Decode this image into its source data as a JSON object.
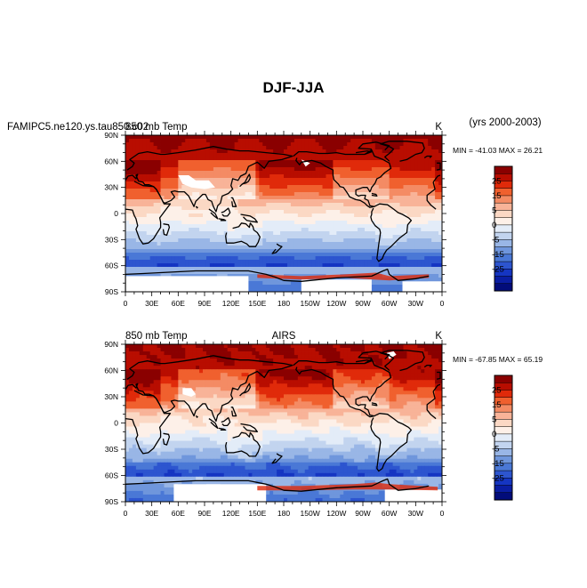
{
  "figure": {
    "title": "DJF-JJA",
    "period": "(yrs 2000-2003)"
  },
  "chart_data": [
    {
      "type": "heatmap",
      "name": "model",
      "left_label": "FAMIPC5.ne120.ys.tau850.c02",
      "variable_label": "850 mb Temp",
      "center_label": "",
      "units": "K",
      "stats": "MIN = -41.03 MAX =  26.21",
      "x_ticks": [
        "0",
        "30E",
        "60E",
        "90E",
        "120E",
        "150E",
        "180",
        "150W",
        "120W",
        "90W",
        "60W",
        "30W",
        "0"
      ],
      "y_ticks": [
        "90N",
        "60N",
        "30N",
        "0",
        "30S",
        "60S",
        "90S"
      ],
      "colorbar_labels": [
        "25",
        "15",
        "5",
        "0",
        "-5",
        "-15",
        "-25"
      ],
      "color_levels": [
        "#8a0000",
        "#b80d00",
        "#e02a0a",
        "#f0602e",
        "#f48b64",
        "#f8b398",
        "#fbd8c4",
        "#fdf0e8",
        "#e3ecf8",
        "#c2d4ef",
        "#99b6e6",
        "#6f96dc",
        "#4a78d6",
        "#2d55cf",
        "#1535c2",
        "#0a1da2",
        "#020c7a"
      ],
      "min": -41.03,
      "max": 26.21
    },
    {
      "type": "heatmap",
      "name": "obs",
      "left_label": "",
      "variable_label": "850 mb Temp",
      "center_label": "AIRS",
      "units": "K",
      "stats": "MIN = -67.85 MAX =  65.19",
      "x_ticks": [
        "0",
        "30E",
        "60E",
        "90E",
        "120E",
        "150E",
        "180",
        "150W",
        "120W",
        "90W",
        "60W",
        "30W",
        "0"
      ],
      "y_ticks": [
        "90N",
        "60N",
        "30N",
        "0",
        "30S",
        "60S",
        "90S"
      ],
      "colorbar_labels": [
        "25",
        "15",
        "5",
        "0",
        "-5",
        "-15",
        "-25"
      ],
      "color_levels": [
        "#8a0000",
        "#b80d00",
        "#e02a0a",
        "#f0602e",
        "#f48b64",
        "#f8b398",
        "#fbd8c4",
        "#fdf0e8",
        "#e3ecf8",
        "#c2d4ef",
        "#99b6e6",
        "#6f96dc",
        "#4a78d6",
        "#2d55cf",
        "#1535c2",
        "#0a1da2",
        "#020c7a"
      ],
      "min": -67.85,
      "max": 65.19
    }
  ]
}
